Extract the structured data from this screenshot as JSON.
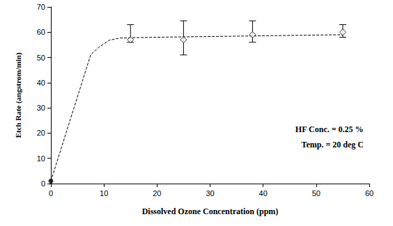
{
  "chart_data": {
    "type": "scatter",
    "x_label": "Dissolved Ozone Concentration (ppm)",
    "y_label": "Etch Rate (angstrom/min)",
    "annotations": [
      "HF Conc. = 0.25 %",
      "Temp. = 20 deg C"
    ],
    "xlim": [
      0,
      60
    ],
    "xticks": [
      0,
      10,
      20,
      30,
      40,
      50,
      60
    ],
    "ylim": [
      0,
      70
    ],
    "yticks": [
      0,
      10,
      20,
      30,
      40,
      50,
      60,
      70
    ],
    "grid": false,
    "series": [
      {
        "type": "line",
        "line_style": "dashed",
        "color": "#000000",
        "x": [
          0,
          7.5,
          9,
          11,
          13,
          20,
          55
        ],
        "values": [
          1,
          51,
          54,
          56.8,
          57.7,
          58,
          59
        ]
      },
      {
        "type": "scatter",
        "marker": "diamond",
        "color": "#000000",
        "x": [
          15,
          25,
          38,
          55
        ],
        "values": [
          57,
          57,
          59,
          60
        ],
        "y_low": [
          56,
          51,
          56,
          58
        ],
        "y_high": [
          63,
          64.5,
          64.5,
          63
        ]
      },
      {
        "type": "scatter",
        "marker": "circle",
        "color": "#000000",
        "x": [
          0
        ],
        "values": [
          1
        ]
      }
    ]
  }
}
